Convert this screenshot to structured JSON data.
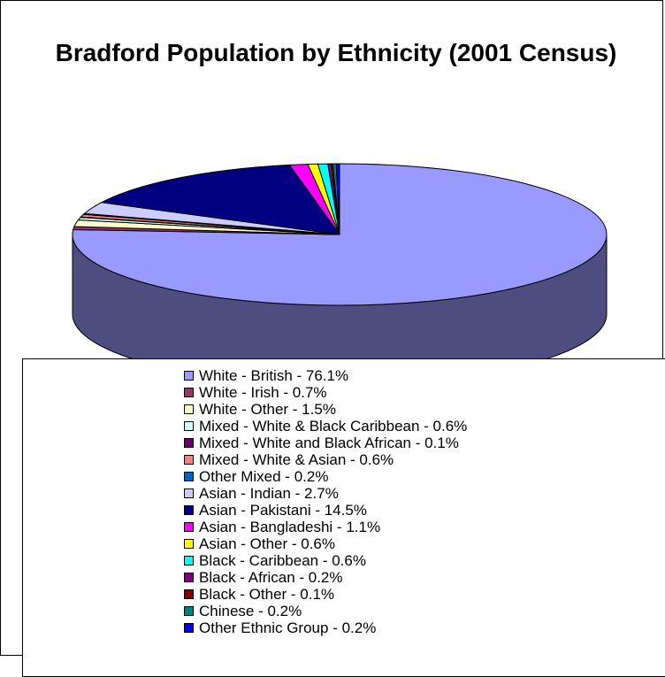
{
  "chart_data": {
    "type": "pie",
    "title": "Bradford Population by Ethnicity (2001 Census)",
    "unit": "%",
    "legend_position": "bottom",
    "slices": [
      {
        "label": "White - British - 76.1%",
        "value": 76.1,
        "color": "#9999ff"
      },
      {
        "label": "White - Irish - 0.7%",
        "value": 0.7,
        "color": "#993366"
      },
      {
        "label": "White - Other - 1.5%",
        "value": 1.5,
        "color": "#ffffcc"
      },
      {
        "label": "Mixed - White & Black Caribbean - 0.6%",
        "value": 0.6,
        "color": "#ccffff"
      },
      {
        "label": "Mixed - White and Black African - 0.1%",
        "value": 0.1,
        "color": "#660066"
      },
      {
        "label": "Mixed - White & Asian - 0.6%",
        "value": 0.6,
        "color": "#ff8080"
      },
      {
        "label": "Other Mixed - 0.2%",
        "value": 0.2,
        "color": "#0066cc"
      },
      {
        "label": "Asian - Indian - 2.7%",
        "value": 2.7,
        "color": "#ccccff"
      },
      {
        "label": "Asian - Pakistani - 14.5%",
        "value": 14.5,
        "color": "#000080"
      },
      {
        "label": "Asian - Bangladeshi - 1.1%",
        "value": 1.1,
        "color": "#ff00ff"
      },
      {
        "label": "Asian - Other - 0.6%",
        "value": 0.6,
        "color": "#ffff00"
      },
      {
        "label": "Black - Caribbean - 0.6%",
        "value": 0.6,
        "color": "#00ffff"
      },
      {
        "label": "Black - African - 0.2%",
        "value": 0.2,
        "color": "#800080"
      },
      {
        "label": "Black - Other - 0.1%",
        "value": 0.1,
        "color": "#800000"
      },
      {
        "label": "Chinese - 0.2%",
        "value": 0.2,
        "color": "#008080"
      },
      {
        "label": "Other Ethnic Group - 0.2%",
        "value": 0.2,
        "color": "#0000ff"
      }
    ]
  }
}
